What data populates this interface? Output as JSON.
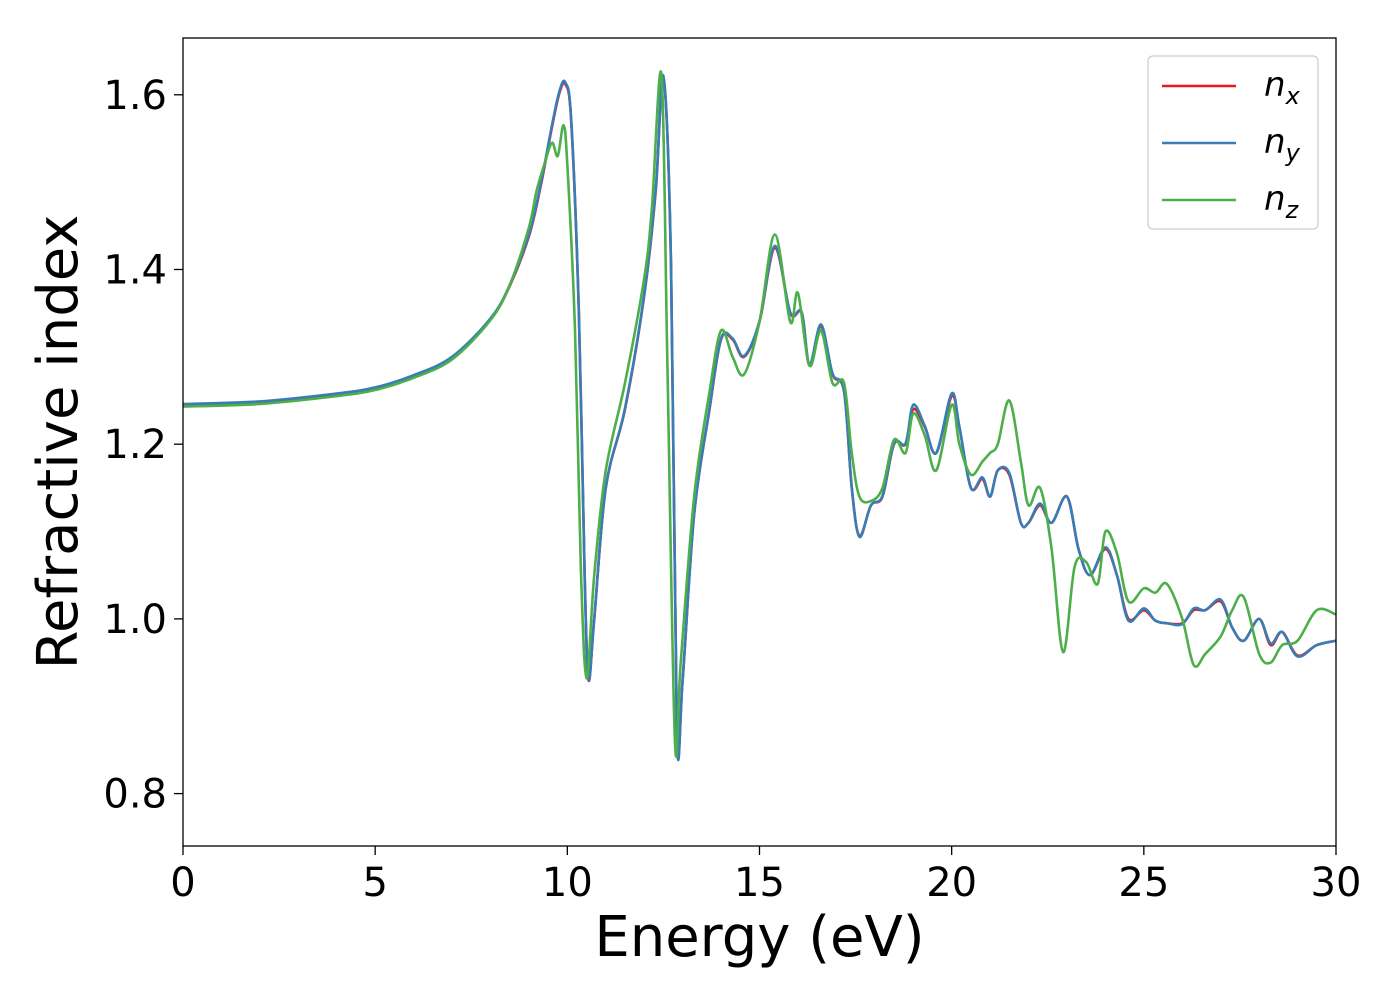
{
  "chart_data": {
    "type": "line",
    "title": "",
    "xlabel": "Energy (eV)",
    "ylabel": "Refractive index",
    "xlim": [
      0,
      30
    ],
    "ylim": [
      0.74,
      1.665
    ],
    "xticks": [
      0,
      5,
      10,
      15,
      20,
      25,
      30
    ],
    "xtick_labels": [
      "0",
      "5",
      "10",
      "15",
      "20",
      "25",
      "30"
    ],
    "yticks": [
      0.8,
      1.0,
      1.2,
      1.4,
      1.6
    ],
    "ytick_labels": [
      "0.8",
      "1.0",
      "1.2",
      "1.4",
      "1.6"
    ],
    "grid": false,
    "legend_position": "top-right",
    "series": [
      {
        "name": "n_x",
        "label_main": "n",
        "label_sub": "x",
        "color": "#e41a1c",
        "x": [
          0,
          2,
          4,
          5,
          6,
          7,
          8,
          8.5,
          9,
          9.3,
          9.6,
          9.8,
          9.95,
          10.1,
          10.3,
          10.45,
          10.55,
          10.7,
          11.0,
          11.5,
          12.0,
          12.3,
          12.5,
          12.7,
          12.85,
          13.0,
          13.3,
          13.7,
          14.0,
          14.3,
          14.6,
          15.0,
          15.4,
          15.8,
          16.1,
          16.3,
          16.6,
          16.9,
          17.2,
          17.4,
          17.6,
          17.9,
          18.2,
          18.5,
          18.8,
          19.0,
          19.3,
          19.6,
          20.0,
          20.2,
          20.5,
          20.8,
          21.0,
          21.2,
          21.5,
          21.8,
          22.0,
          22.3,
          22.6,
          23.0,
          23.3,
          23.6,
          24.0,
          24.3,
          24.6,
          25.0,
          25.3,
          25.6,
          26.0,
          26.3,
          26.6,
          27.0,
          27.3,
          27.6,
          28.0,
          28.3,
          28.6,
          29.0,
          29.5,
          30.0
        ],
        "y": [
          1.245,
          1.248,
          1.257,
          1.264,
          1.278,
          1.299,
          1.343,
          1.381,
          1.438,
          1.494,
          1.563,
          1.603,
          1.612,
          1.57,
          1.35,
          1.05,
          0.93,
          1.0,
          1.15,
          1.24,
          1.37,
          1.49,
          1.62,
          1.4,
          0.87,
          0.93,
          1.12,
          1.24,
          1.32,
          1.32,
          1.3,
          1.34,
          1.425,
          1.35,
          1.35,
          1.29,
          1.335,
          1.28,
          1.26,
          1.15,
          1.095,
          1.13,
          1.14,
          1.2,
          1.2,
          1.24,
          1.22,
          1.19,
          1.255,
          1.22,
          1.15,
          1.16,
          1.14,
          1.17,
          1.165,
          1.11,
          1.11,
          1.13,
          1.11,
          1.14,
          1.08,
          1.05,
          1.08,
          1.05,
          1.0,
          1.01,
          0.998,
          0.995,
          0.995,
          1.01,
          1.01,
          1.02,
          0.99,
          0.975,
          1.0,
          0.97,
          0.985,
          0.958,
          0.97,
          0.975
        ]
      },
      {
        "name": "n_y",
        "label_main": "n",
        "label_sub": "y",
        "color": "#377eb8",
        "x": [
          0,
          2,
          4,
          5,
          6,
          7,
          8,
          8.5,
          9,
          9.3,
          9.6,
          9.8,
          9.95,
          10.1,
          10.3,
          10.45,
          10.55,
          10.7,
          11.0,
          11.5,
          12.0,
          12.3,
          12.5,
          12.7,
          12.85,
          13.0,
          13.3,
          13.7,
          14.0,
          14.3,
          14.6,
          15.0,
          15.4,
          15.8,
          16.1,
          16.3,
          16.6,
          16.9,
          17.2,
          17.4,
          17.6,
          17.9,
          18.2,
          18.5,
          18.8,
          19.0,
          19.3,
          19.6,
          20.0,
          20.2,
          20.5,
          20.8,
          21.0,
          21.2,
          21.5,
          21.8,
          22.0,
          22.3,
          22.6,
          23.0,
          23.3,
          23.6,
          24.0,
          24.3,
          24.6,
          25.0,
          25.3,
          25.6,
          26.0,
          26.3,
          26.6,
          27.0,
          27.3,
          27.6,
          28.0,
          28.3,
          28.6,
          29.0,
          29.5,
          30.0
        ],
        "y": [
          1.246,
          1.249,
          1.258,
          1.265,
          1.279,
          1.3,
          1.344,
          1.382,
          1.44,
          1.496,
          1.565,
          1.605,
          1.614,
          1.572,
          1.352,
          1.052,
          0.931,
          1.0,
          1.15,
          1.241,
          1.371,
          1.492,
          1.621,
          1.402,
          0.868,
          0.93,
          1.12,
          1.241,
          1.321,
          1.321,
          1.301,
          1.341,
          1.427,
          1.351,
          1.351,
          1.291,
          1.337,
          1.281,
          1.261,
          1.151,
          1.094,
          1.13,
          1.141,
          1.201,
          1.201,
          1.245,
          1.221,
          1.19,
          1.258,
          1.22,
          1.15,
          1.162,
          1.14,
          1.17,
          1.167,
          1.11,
          1.11,
          1.132,
          1.11,
          1.14,
          1.08,
          1.05,
          1.082,
          1.05,
          0.998,
          1.012,
          0.998,
          0.995,
          0.994,
          1.012,
          1.01,
          1.022,
          0.99,
          0.975,
          1.0,
          0.972,
          0.985,
          0.957,
          0.97,
          0.975
        ]
      },
      {
        "name": "n_z",
        "label_main": "n",
        "label_sub": "z",
        "color": "#4daf4a",
        "x": [
          0,
          2,
          4,
          5,
          6,
          7,
          8,
          8.5,
          9,
          9.2,
          9.4,
          9.6,
          9.75,
          9.9,
          10.0,
          10.2,
          10.35,
          10.5,
          10.7,
          11.0,
          11.5,
          12.0,
          12.2,
          12.45,
          12.6,
          12.8,
          12.95,
          13.3,
          13.7,
          14.0,
          14.3,
          14.6,
          15.0,
          15.4,
          15.8,
          16.0,
          16.3,
          16.6,
          16.9,
          17.2,
          17.4,
          17.6,
          17.9,
          18.2,
          18.5,
          18.8,
          19.0,
          19.3,
          19.6,
          20.0,
          20.2,
          20.5,
          20.8,
          21.0,
          21.2,
          21.5,
          21.8,
          22.0,
          22.3,
          22.6,
          22.9,
          23.2,
          23.5,
          23.8,
          24.0,
          24.3,
          24.6,
          25.0,
          25.3,
          25.6,
          26.0,
          26.3,
          26.6,
          27.0,
          27.3,
          27.6,
          28.0,
          28.3,
          28.6,
          29.0,
          29.5,
          30.0
        ],
        "y": [
          1.243,
          1.246,
          1.255,
          1.262,
          1.276,
          1.297,
          1.342,
          1.382,
          1.448,
          1.49,
          1.52,
          1.545,
          1.53,
          1.565,
          1.52,
          1.33,
          1.06,
          0.932,
          1.05,
          1.17,
          1.27,
          1.39,
          1.47,
          1.623,
          1.3,
          0.86,
          0.95,
          1.14,
          1.26,
          1.33,
          1.3,
          1.28,
          1.34,
          1.44,
          1.34,
          1.373,
          1.29,
          1.33,
          1.27,
          1.27,
          1.19,
          1.14,
          1.135,
          1.15,
          1.205,
          1.19,
          1.235,
          1.21,
          1.17,
          1.245,
          1.2,
          1.165,
          1.18,
          1.19,
          1.2,
          1.25,
          1.18,
          1.13,
          1.15,
          1.08,
          0.962,
          1.06,
          1.065,
          1.04,
          1.1,
          1.075,
          1.02,
          1.035,
          1.03,
          1.04,
          1.0,
          0.947,
          0.96,
          0.98,
          1.01,
          1.025,
          0.96,
          0.95,
          0.97,
          0.975,
          1.01,
          1.005
        ]
      }
    ]
  }
}
